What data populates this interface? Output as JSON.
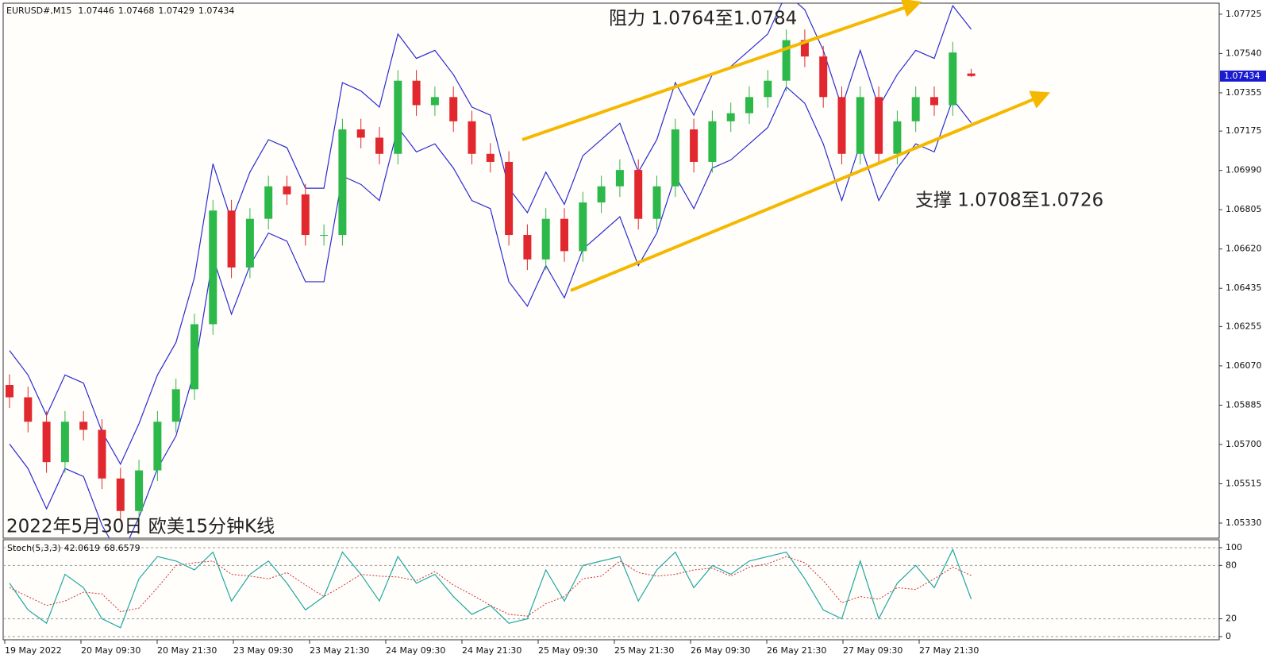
{
  "chart_data": [
    {
      "type": "candlestick",
      "symbol": "EURUSD#,M15",
      "header_values": [
        1.07446,
        1.07468,
        1.07429,
        1.07434
      ],
      "title": "2022年5月30日 欧美15分钟K线",
      "annotations": [
        "阻力 1.0764至1.0784",
        "支撑 1.0708至1.0726"
      ],
      "x_labels": [
        "19 May 2022",
        "20 May 09:30",
        "20 May 21:30",
        "23 May 09:30",
        "23 May 21:30",
        "24 May 09:30",
        "24 May 21:30",
        "25 May 09:30",
        "25 May 21:30",
        "26 May 09:30",
        "26 May 21:30",
        "27 May 09:30",
        "27 May 21:30"
      ],
      "open": [
        1.0598,
        1.05922,
        1.05807,
        1.05617,
        1.05807,
        1.05769,
        1.0554,
        1.05387,
        1.05578,
        1.05807,
        1.0596,
        1.06266,
        1.06801,
        1.06533,
        1.06762,
        1.06915,
        1.06877,
        1.06686,
        1.06686,
        1.07183,
        1.07144,
        1.07068,
        1.07412,
        1.07297,
        1.07335,
        1.07221,
        1.07068,
        1.0703,
        1.06686,
        1.06571,
        1.06762,
        1.0661,
        1.06839,
        1.06915,
        1.06992,
        1.06762,
        1.06915,
        1.07183,
        1.0703,
        1.07221,
        1.07259,
        1.07335,
        1.07412,
        1.07603,
        1.07526,
        1.07335,
        1.07068,
        1.07335,
        1.07068,
        1.07221,
        1.07335,
        1.07297,
        1.07446
      ],
      "high": [
        1.0603,
        1.05972,
        1.05857,
        1.05857,
        1.05857,
        1.05819,
        1.0559,
        1.05628,
        1.05857,
        1.0601,
        1.06316,
        1.06851,
        1.06851,
        1.06812,
        1.06965,
        1.06965,
        1.06927,
        1.06736,
        1.07233,
        1.07233,
        1.07194,
        1.07462,
        1.07462,
        1.07385,
        1.07385,
        1.07271,
        1.07118,
        1.0708,
        1.06736,
        1.06812,
        1.06812,
        1.06889,
        1.06965,
        1.07042,
        1.07042,
        1.06965,
        1.07233,
        1.07233,
        1.07271,
        1.07309,
        1.07385,
        1.07462,
        1.07653,
        1.07653,
        1.07576,
        1.07385,
        1.07385,
        1.07385,
        1.07271,
        1.07385,
        1.07385,
        1.07595,
        1.07468
      ],
      "low": [
        1.05872,
        1.05757,
        1.05567,
        1.05567,
        1.05719,
        1.0549,
        1.05337,
        1.05337,
        1.05528,
        1.05757,
        1.0591,
        1.06216,
        1.06483,
        1.06483,
        1.06712,
        1.06827,
        1.06636,
        1.06636,
        1.06636,
        1.07094,
        1.07018,
        1.07018,
        1.07247,
        1.07247,
        1.07171,
        1.07018,
        1.0698,
        1.06636,
        1.06521,
        1.06521,
        1.0656,
        1.0656,
        1.06789,
        1.06865,
        1.06712,
        1.06712,
        1.06865,
        1.0698,
        1.0698,
        1.07171,
        1.07209,
        1.07285,
        1.07362,
        1.07476,
        1.07285,
        1.07018,
        1.07018,
        1.07018,
        1.07018,
        1.07171,
        1.07247,
        1.07247,
        1.07429
      ],
      "close": [
        1.05922,
        1.05807,
        1.05617,
        1.05807,
        1.05769,
        1.0554,
        1.05387,
        1.05578,
        1.05807,
        1.0596,
        1.06266,
        1.06801,
        1.06533,
        1.06762,
        1.06915,
        1.06877,
        1.06686,
        1.06686,
        1.07183,
        1.07144,
        1.07068,
        1.07412,
        1.07297,
        1.07335,
        1.07221,
        1.07068,
        1.0703,
        1.06686,
        1.06571,
        1.06762,
        1.0661,
        1.06839,
        1.06915,
        1.06992,
        1.06762,
        1.06915,
        1.07183,
        1.0703,
        1.07221,
        1.07259,
        1.07335,
        1.07412,
        1.07603,
        1.07526,
        1.07335,
        1.07068,
        1.07335,
        1.07068,
        1.07221,
        1.07335,
        1.07297,
        1.07545,
        1.07434
      ],
      "upper_band": [
        1.06142,
        1.06027,
        1.05837,
        1.06027,
        1.05989,
        1.0576,
        1.05607,
        1.05798,
        1.06027,
        1.0618,
        1.06486,
        1.07021,
        1.06753,
        1.06982,
        1.07135,
        1.07097,
        1.06906,
        1.06906,
        1.07403,
        1.07364,
        1.07288,
        1.07632,
        1.07517,
        1.07555,
        1.07441,
        1.07288,
        1.0725,
        1.06906,
        1.06791,
        1.06982,
        1.0683,
        1.07059,
        1.07135,
        1.07212,
        1.06982,
        1.07135,
        1.07403,
        1.0725,
        1.07441,
        1.07479,
        1.07555,
        1.07632,
        1.07823,
        1.07746,
        1.07555,
        1.07288,
        1.07555,
        1.07288,
        1.07441,
        1.07555,
        1.07517,
        1.07765,
        1.07654
      ],
      "lower_band": [
        1.05702,
        1.05587,
        1.05397,
        1.05587,
        1.05549,
        1.0532,
        1.05167,
        1.05358,
        1.05587,
        1.0574,
        1.06046,
        1.06581,
        1.06313,
        1.06542,
        1.06695,
        1.06657,
        1.06466,
        1.06466,
        1.06963,
        1.06924,
        1.06848,
        1.07192,
        1.07077,
        1.07115,
        1.07001,
        1.06848,
        1.0681,
        1.06466,
        1.06351,
        1.06542,
        1.0639,
        1.06619,
        1.06695,
        1.06772,
        1.06542,
        1.06695,
        1.06963,
        1.0681,
        1.07001,
        1.07039,
        1.07115,
        1.07192,
        1.07383,
        1.07306,
        1.07115,
        1.06848,
        1.07115,
        1.06848,
        1.07001,
        1.07115,
        1.07077,
        1.07325,
        1.07214
      ],
      "band_color": "#2b2bd0",
      "up_color": "#2db84a",
      "down_color": "#e0282e",
      "current_price": 1.07434,
      "ylim": [
        1.05259,
        1.07777
      ],
      "yticks": [
        1.07725,
        {
          "value": 1.0754,
          "label": "1.07540"
        },
        1.07355,
        1.07175,
        {
          "value": 1.0699,
          "label": "1.06990"
        },
        1.06805,
        {
          "value": 1.0662,
          "label": "1.06620"
        },
        1.06435,
        1.06255,
        {
          "value": 1.0607,
          "label": "1.06070"
        },
        1.05885,
        {
          "value": 1.057,
          "label": "1.05700"
        },
        1.05515,
        {
          "value": 1.0533,
          "label": "1.05330"
        }
      ]
    },
    {
      "type": "line",
      "label": "Stoch(5,3,3)",
      "label_values": [
        42.0619,
        68.6579
      ],
      "series": [
        {
          "color": "#20a8a0",
          "values": [
            60,
            30,
            15,
            70,
            55,
            20,
            10,
            65,
            90,
            85,
            75,
            95,
            40,
            70,
            85,
            60,
            30,
            45,
            95,
            70,
            40,
            90,
            60,
            70,
            45,
            25,
            35,
            15,
            20,
            75,
            40,
            80,
            85,
            90,
            40,
            75,
            95,
            55,
            80,
            70,
            85,
            90,
            95,
            65,
            30,
            20,
            85,
            20,
            60,
            80,
            55,
            98,
            42.0619
          ]
        },
        {
          "color": "#d03030",
          "dashed": true,
          "values": [
            55,
            45,
            35,
            40,
            50,
            48,
            28,
            32,
            55,
            80,
            83,
            85,
            70,
            68,
            65,
            72,
            58,
            45,
            57,
            70,
            68,
            67,
            63,
            73,
            58,
            47,
            35,
            25,
            23,
            37,
            45,
            65,
            68,
            85,
            72,
            68,
            70,
            75,
            77,
            68,
            78,
            82,
            90,
            83,
            63,
            38,
            45,
            42,
            55,
            53,
            65,
            78,
            68.6579
          ]
        }
      ],
      "ylim": [
        -3.6,
        108.9
      ],
      "yticks": [
        100,
        80,
        20,
        0
      ]
    }
  ]
}
